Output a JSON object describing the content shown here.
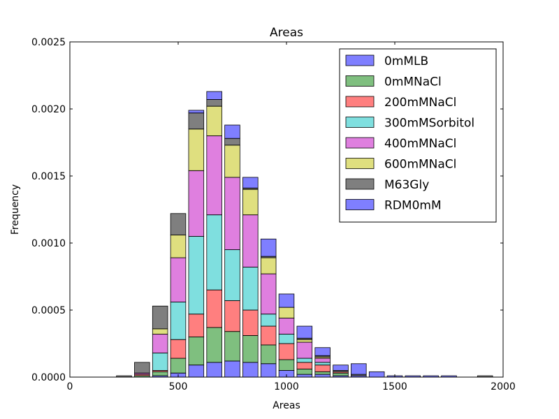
{
  "chart_data": {
    "type": "bar",
    "stacked": true,
    "title": "Areas",
    "xlabel": "Areas",
    "ylabel": "Frequency",
    "xlim": [
      0,
      2000
    ],
    "ylim": [
      0,
      0.0025
    ],
    "xticks": [
      0,
      500,
      1000,
      1500,
      2000
    ],
    "xtick_labels": [
      "0",
      "500",
      "1000",
      "1500",
      "2000"
    ],
    "yticks": [
      0,
      0.0005,
      0.001,
      0.0015,
      0.002,
      0.0025
    ],
    "ytick_labels": [
      "0.0000",
      "0.0005",
      "0.0010",
      "0.0015",
      "0.0020",
      "0.0025"
    ],
    "grid": false,
    "legend_position": "top-right",
    "bin_centers": [
      83.3,
      166.7,
      250,
      333.3,
      416.7,
      500,
      583.3,
      666.7,
      750,
      833.3,
      916.7,
      1000,
      1083.3,
      1166.7,
      1250,
      1333.3,
      1416.7,
      1500,
      1583.3,
      1666.7,
      1750,
      1833.3,
      1916.7
    ],
    "bin_width": 70,
    "series": [
      {
        "name": "0mMLB",
        "color": "#0000ff",
        "values": [
          0,
          0,
          0,
          0,
          1e-05,
          3e-05,
          9e-05,
          0.00011,
          0.00012,
          0.00011,
          0.0001,
          5e-05,
          2e-05,
          2e-05,
          1e-05,
          1e-05,
          0,
          0,
          0,
          0,
          0,
          0,
          0
        ]
      },
      {
        "name": "0mMNaCl",
        "color": "#008000",
        "values": [
          0,
          0,
          0,
          1e-05,
          3e-05,
          0.00011,
          0.00021,
          0.00026,
          0.00022,
          0.0002,
          0.00014,
          8e-05,
          4e-05,
          2e-05,
          2e-05,
          0,
          0,
          0,
          0,
          0,
          0,
          0,
          0
        ]
      },
      {
        "name": "200mMNaCl",
        "color": "#ff0000",
        "values": [
          0,
          0,
          0,
          1e-05,
          1e-05,
          0.00014,
          0.00017,
          0.00028,
          0.00023,
          0.00019,
          0.00014,
          0.00012,
          5e-05,
          5e-05,
          1e-05,
          0,
          0,
          0,
          0,
          0,
          0,
          0,
          0
        ]
      },
      {
        "name": "300mMSorbitol",
        "color": "#00bfbf",
        "values": [
          0,
          0,
          0,
          0,
          0.00013,
          0.00028,
          0.00058,
          0.00056,
          0.00038,
          0.00032,
          9e-05,
          7e-05,
          3e-05,
          2e-05,
          0,
          0,
          0,
          0,
          0,
          0,
          0,
          0,
          0
        ]
      },
      {
        "name": "400mMNaCl",
        "color": "#bf00bf",
        "values": [
          0,
          0,
          0,
          1e-05,
          0.00014,
          0.00033,
          0.00049,
          0.00059,
          0.00054,
          0.00039,
          0.0003,
          0.00012,
          0.00012,
          3e-05,
          0,
          0,
          0,
          0,
          0,
          0,
          0,
          0,
          0
        ]
      },
      {
        "name": "600mMNaCl",
        "color": "#bfbf00",
        "values": [
          0,
          0,
          0,
          0,
          4e-05,
          0.00017,
          0.00031,
          0.00022,
          0.00024,
          0.00019,
          0.00012,
          8e-05,
          2e-05,
          1e-05,
          0,
          0,
          0,
          0,
          0,
          0,
          0,
          0,
          0
        ]
      },
      {
        "name": "M63Gly",
        "color": "#000000",
        "values": [
          0,
          0,
          1e-05,
          8e-05,
          0.00017,
          0.00016,
          0.00012,
          5e-05,
          5e-05,
          1e-05,
          1e-05,
          0,
          1e-05,
          1e-05,
          1e-05,
          1e-05,
          0,
          0,
          0,
          0,
          0,
          0,
          1e-05
        ]
      },
      {
        "name": "RDM0mM",
        "color": "#0000ff",
        "values": [
          0,
          0,
          0,
          0,
          0,
          0,
          2e-05,
          6e-05,
          0.0001,
          8e-05,
          0.00013,
          0.0001,
          9e-05,
          6e-05,
          4e-05,
          8e-05,
          4e-05,
          1e-05,
          1e-05,
          1e-05,
          1e-05,
          0,
          0
        ]
      }
    ]
  }
}
